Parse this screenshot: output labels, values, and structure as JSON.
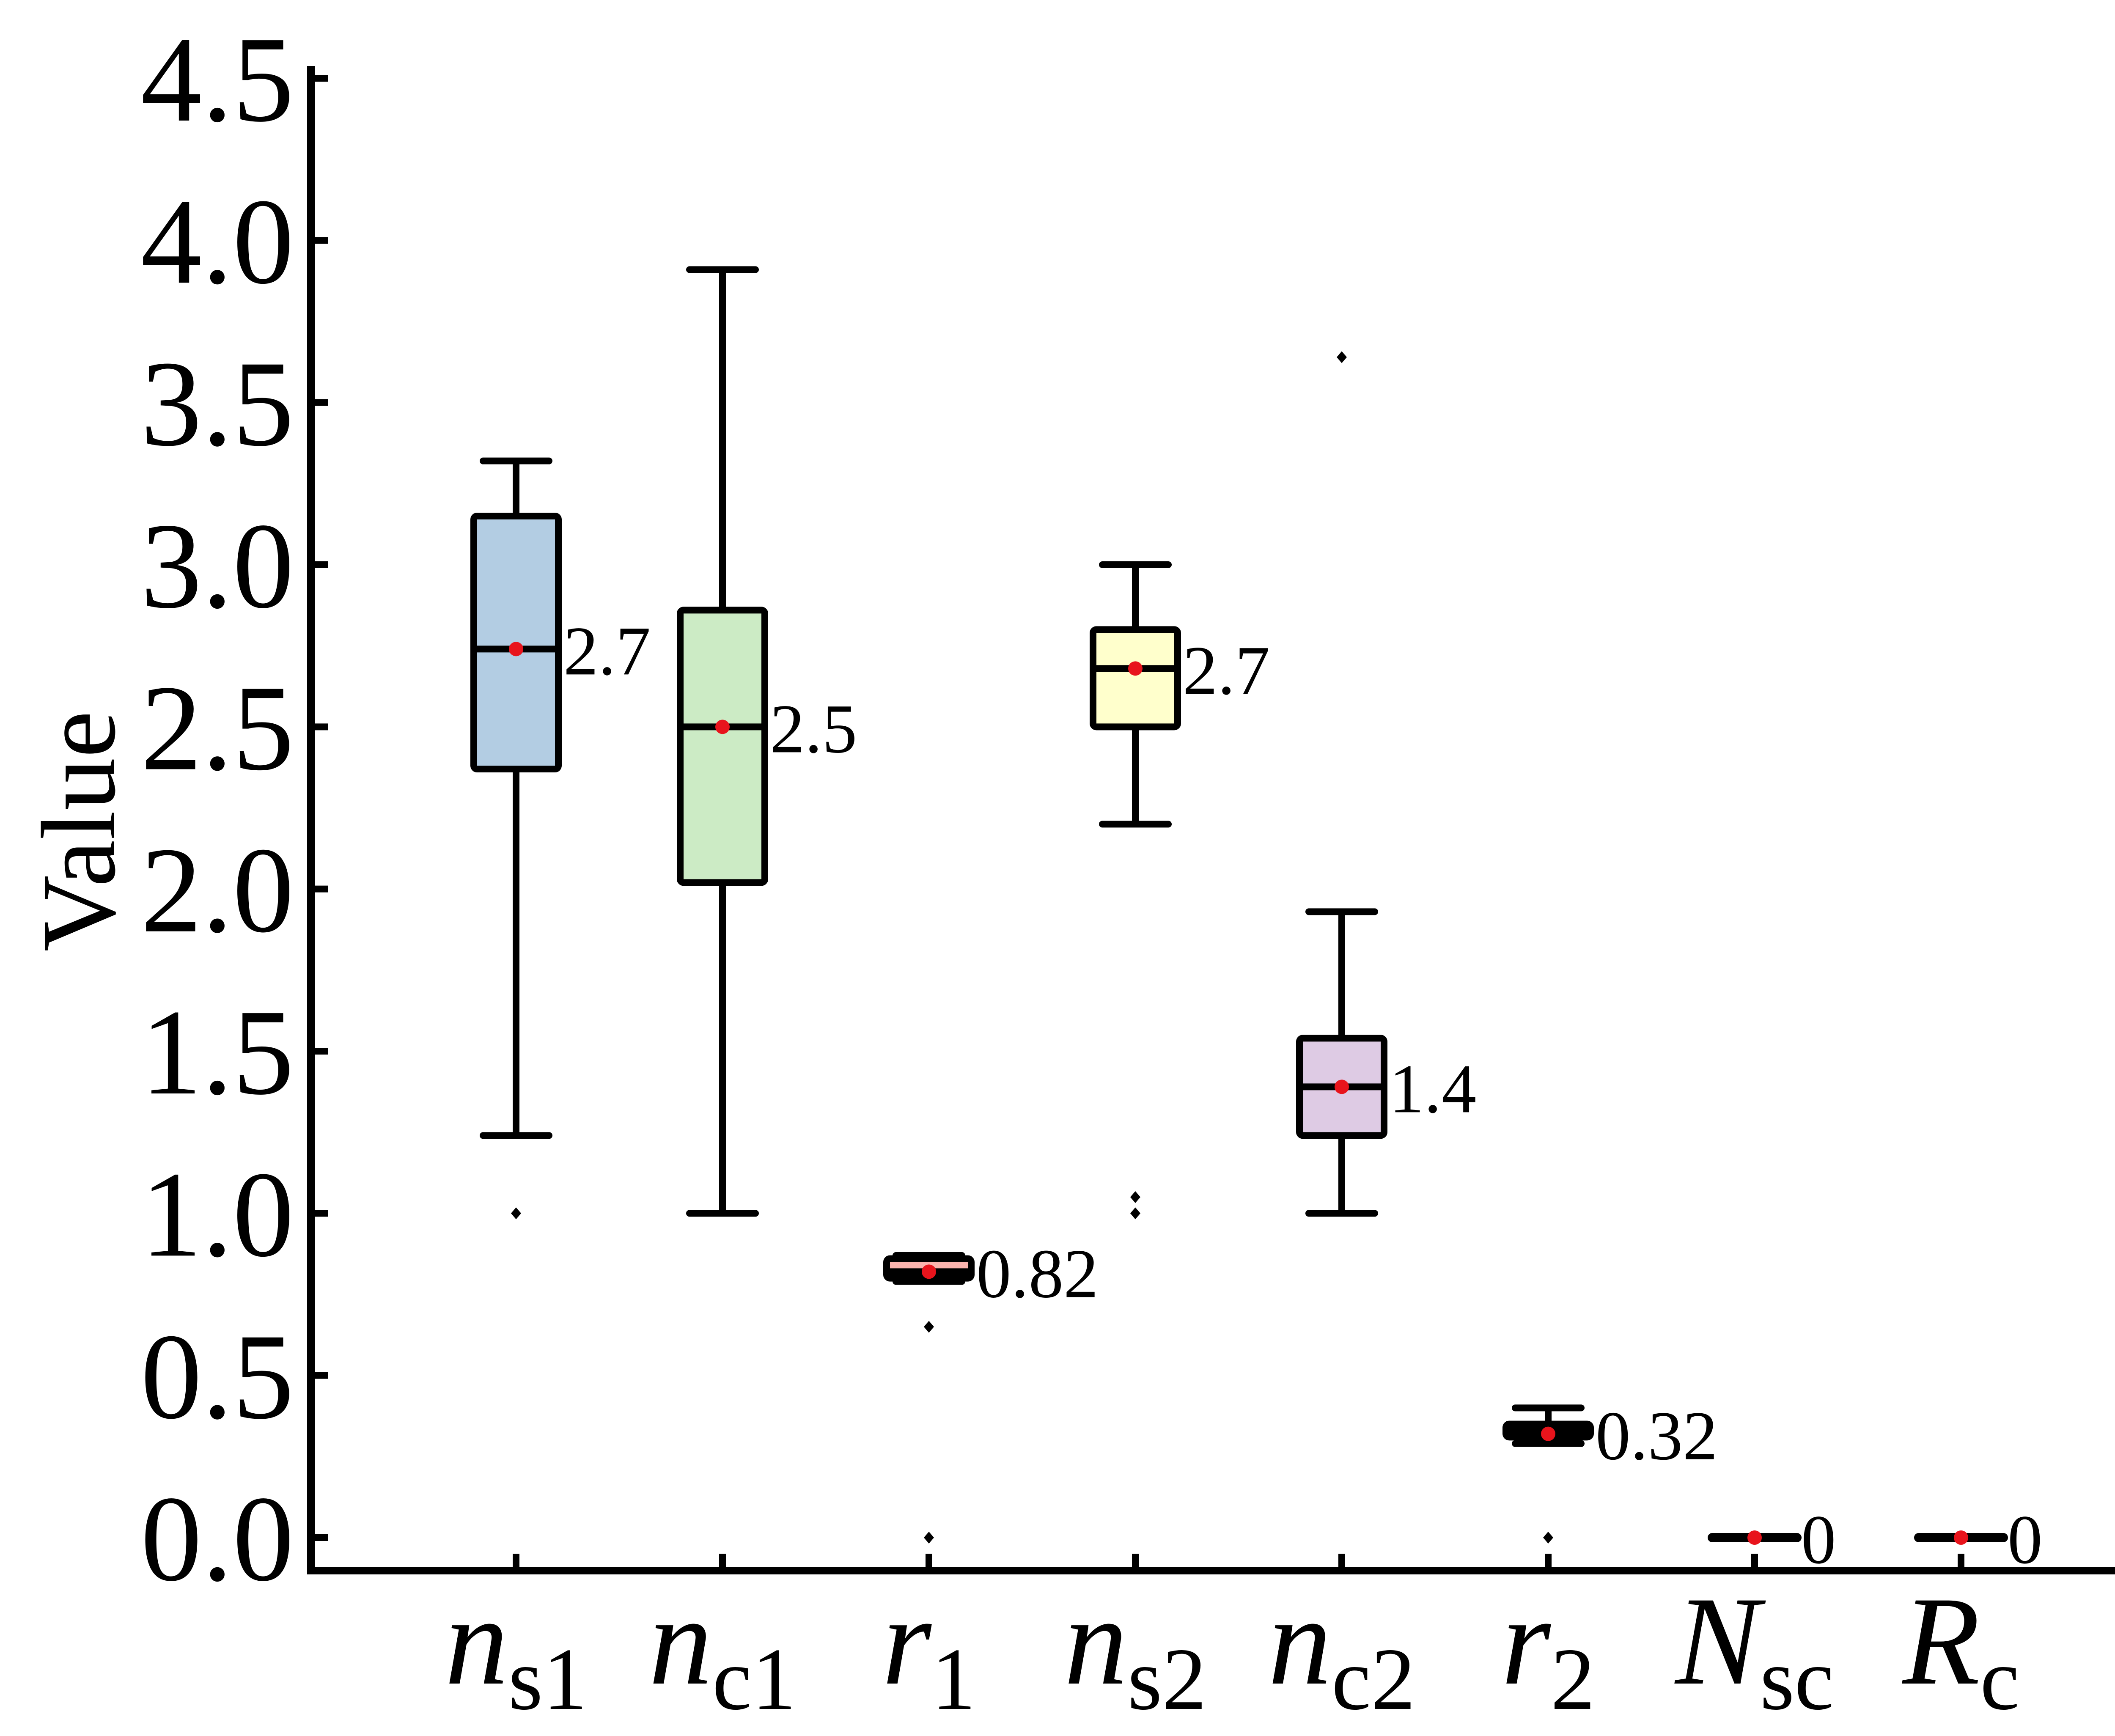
{
  "chart_data": {
    "type": "box",
    "title": "",
    "xlabel": "",
    "ylabel": "Value",
    "ylim": [
      0,
      4.5
    ],
    "yticks": [
      "0.0",
      "0.5",
      "1.0",
      "1.5",
      "2.0",
      "2.5",
      "3.0",
      "3.5",
      "4.0",
      "4.5"
    ],
    "grid": false,
    "legend": "none",
    "categories": [
      {
        "name": "n_s1",
        "main": "n",
        "sub": "s1"
      },
      {
        "name": "n_c1",
        "main": "n",
        "sub": "c1"
      },
      {
        "name": "r_1",
        "main": "r",
        "sub": "1"
      },
      {
        "name": "n_s2",
        "main": "n",
        "sub": "s2"
      },
      {
        "name": "n_c2",
        "main": "n",
        "sub": "c2"
      },
      {
        "name": "r_2",
        "main": "r",
        "sub": "2"
      },
      {
        "name": "N_sc",
        "main": "N",
        "sub": "sc"
      },
      {
        "name": "R_c",
        "main": "R",
        "sub": "c"
      }
    ],
    "boxes": [
      {
        "whisker_low": 1.24,
        "q1": 2.37,
        "median": 2.74,
        "q3": 3.15,
        "whisker_high": 3.32,
        "mean": 2.74,
        "outliers": [
          1.0
        ],
        "label": "2.7",
        "color": "#b3cde3"
      },
      {
        "whisker_low": 1.0,
        "q1": 2.02,
        "median": 2.5,
        "q3": 2.86,
        "whisker_high": 3.91,
        "mean": 2.5,
        "outliers": [],
        "label": "2.5",
        "color": "#ccebc5"
      },
      {
        "whisker_low": 0.79,
        "q1": 0.8,
        "median": 0.82,
        "q3": 0.86,
        "whisker_high": 0.87,
        "mean": 0.82,
        "outliers": [
          0.65,
          0.0
        ],
        "label": "0.82",
        "color": "#fbb4ae"
      },
      {
        "whisker_low": 2.2,
        "q1": 2.5,
        "median": 2.68,
        "q3": 2.8,
        "whisker_high": 3.0,
        "mean": 2.68,
        "outliers": [
          1.05,
          1.0
        ],
        "label": "2.7",
        "color": "#ffffcc"
      },
      {
        "whisker_low": 1.0,
        "q1": 1.24,
        "median": 1.39,
        "q3": 1.54,
        "whisker_high": 1.93,
        "mean": 1.39,
        "outliers": [
          3.64
        ],
        "label": "1.4",
        "color": "#decbe4"
      },
      {
        "whisker_low": 0.29,
        "q1": 0.31,
        "median": 0.33,
        "q3": 0.35,
        "whisker_high": 0.4,
        "mean": 0.32,
        "outliers": [
          0.0
        ],
        "label": "0.32",
        "color": "#fed9a6"
      },
      {
        "whisker_low": 0,
        "q1": 0,
        "median": 0,
        "q3": 0,
        "whisker_high": 0,
        "mean": 0,
        "outliers": [],
        "label": "0",
        "color": "#e5d8bd"
      },
      {
        "whisker_low": 0,
        "q1": 0,
        "median": 0,
        "q3": 0,
        "whisker_high": 0,
        "mean": 0,
        "outliers": [],
        "label": "0",
        "color": "#fddaec"
      }
    ],
    "mean_marker_color": "#e8141c",
    "line_color": "#000000"
  }
}
